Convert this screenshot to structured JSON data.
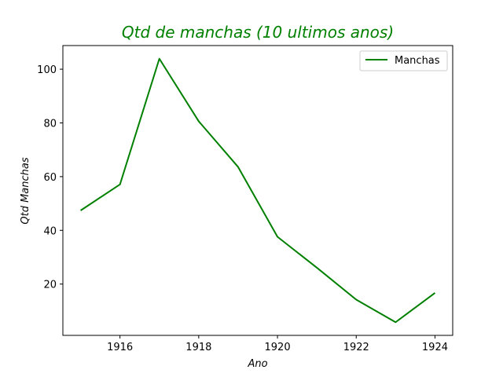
{
  "chart_data": {
    "type": "line",
    "title": "Qtd de manchas (10 ultimos anos)",
    "title_color": "#008000",
    "xlabel": "Ano",
    "ylabel": "Qtd Manchas",
    "x": [
      1915,
      1916,
      1917,
      1918,
      1919,
      1920,
      1921,
      1922,
      1923,
      1924
    ],
    "series": [
      {
        "name": "Manchas",
        "color": "#008000",
        "values": [
          47.4,
          57.1,
          103.9,
          80.6,
          63.6,
          37.6,
          26.1,
          14.2,
          5.8,
          16.7
        ]
      }
    ],
    "xticks": [
      1916,
      1918,
      1920,
      1922,
      1924
    ],
    "yticks": [
      20,
      40,
      60,
      80,
      100
    ],
    "xlim": [
      1914.55,
      1924.45
    ],
    "ylim": [
      0.9,
      108.8
    ],
    "grid": false,
    "legend": "top-right"
  }
}
